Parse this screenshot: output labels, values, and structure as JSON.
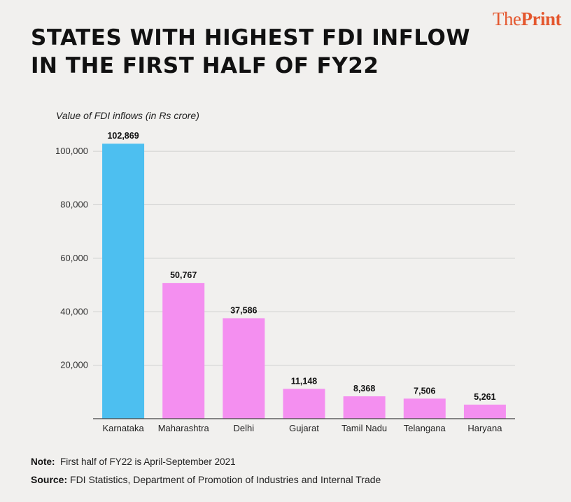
{
  "brand": {
    "the": "The",
    "print": "Print"
  },
  "title_lines": [
    "STATES WITH HIGHEST FDI INFLOW",
    "IN THE FIRST HALF OF FY22"
  ],
  "note": {
    "label": "Note:",
    "text": "First half of FY22 is April-September 2021"
  },
  "source": {
    "label": "Source:",
    "text": "FDI Statistics, Department of Promotion of Industries and Internal Trade"
  },
  "chart_data": {
    "type": "bar",
    "ylabel": "Value of FDI inflows (in Rs crore)",
    "categories": [
      "Karnataka",
      "Maharashtra",
      "Delhi",
      "Gujarat",
      "Tamil Nadu",
      "Telangana",
      "Haryana"
    ],
    "values": [
      102869,
      50767,
      37586,
      11148,
      8368,
      7506,
      5261
    ],
    "value_labels": [
      "102,869",
      "50,767",
      "37,586",
      "11,148",
      "8,368",
      "7,506",
      "5,261"
    ],
    "yticks": [
      20000,
      40000,
      60000,
      80000,
      100000
    ],
    "ytick_labels": [
      "20,000",
      "40,000",
      "60,000",
      "80,000",
      "100,000"
    ],
    "ylim": [
      0,
      110000
    ],
    "grid": true,
    "colors": {
      "highlight": "#4dbff0",
      "default": "#f48ff0",
      "grid": "#cfcfcf",
      "axis": "#444444"
    }
  }
}
